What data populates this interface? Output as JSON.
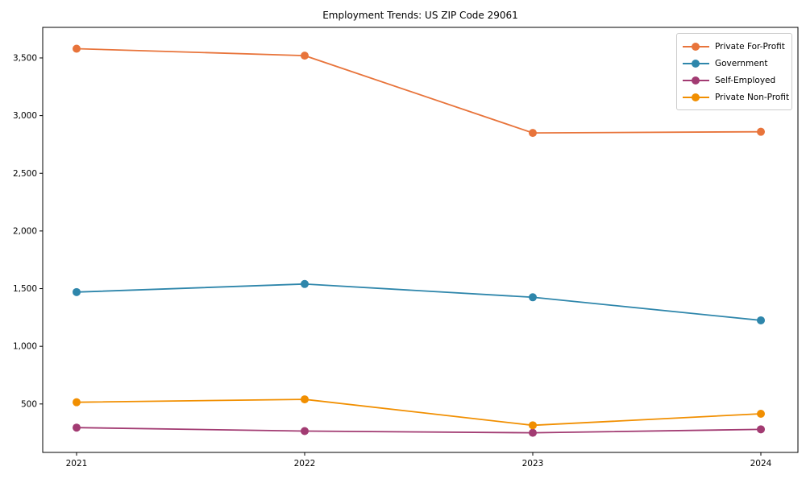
{
  "title": "Employment Trends: US ZIP Code 29061",
  "chart_data": {
    "type": "line",
    "title": "Employment Trends: US ZIP Code 29061",
    "xlabel": "",
    "ylabel": "",
    "categories": [
      "2021",
      "2022",
      "2023",
      "2024"
    ],
    "series": [
      {
        "name": "Private For-Profit",
        "color": "#E8743B",
        "values": [
          3580,
          3520,
          2850,
          2860
        ]
      },
      {
        "name": "Government",
        "color": "#2E86AB",
        "values": [
          1470,
          1540,
          1425,
          1225
        ]
      },
      {
        "name": "Self-Employed",
        "color": "#A23B72",
        "values": [
          295,
          265,
          250,
          280
        ]
      },
      {
        "name": "Private Non-Profit",
        "color": "#F18F01",
        "values": [
          515,
          540,
          315,
          415
        ]
      }
    ],
    "ylim": [
      80,
      3765
    ],
    "y_ticks": [
      {
        "value": 500,
        "label": "500"
      },
      {
        "value": 1000,
        "label": "1,000"
      },
      {
        "value": 1500,
        "label": "1,500"
      },
      {
        "value": 2000,
        "label": "2,000"
      },
      {
        "value": 2500,
        "label": "2,500"
      },
      {
        "value": 3000,
        "label": "3,000"
      },
      {
        "value": 3500,
        "label": "3,500"
      }
    ],
    "grid": false,
    "legend_position": "upper right",
    "marker": "o",
    "axis_color": "#000000"
  }
}
